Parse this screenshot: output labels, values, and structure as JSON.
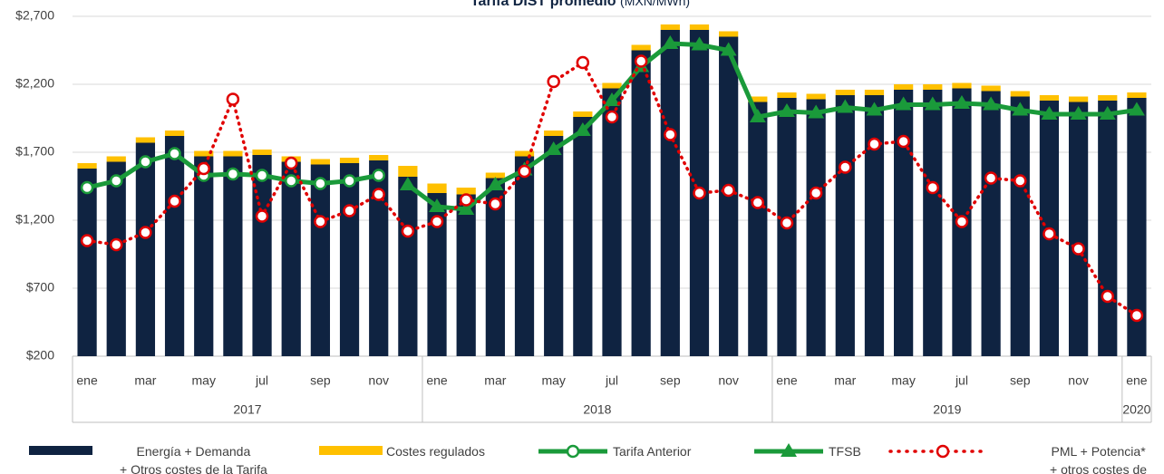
{
  "chart_data": {
    "type": "combo",
    "title": "Tarifa DIST promedio",
    "subtitle": "(MXN/MWh)",
    "categories": [
      "ene",
      null,
      "mar",
      null,
      "may",
      null,
      "jul",
      null,
      "sep",
      null,
      "nov",
      null,
      "ene",
      null,
      "mar",
      null,
      "may",
      null,
      "jul",
      null,
      "sep",
      null,
      "nov",
      null,
      "ene",
      null,
      "mar",
      null,
      "may",
      null,
      "jul",
      null,
      "sep",
      null,
      "nov",
      null,
      "ene"
    ],
    "years": [
      "2017",
      "2018",
      "2019",
      "2020"
    ],
    "ylim": [
      200,
      2700
    ],
    "yticks": [
      {
        "value": 200,
        "label": "$200"
      },
      {
        "value": 700,
        "label": "$700"
      },
      {
        "value": 1200,
        "label": "$1,200"
      },
      {
        "value": 1700,
        "label": "$1,700"
      },
      {
        "value": 2200,
        "label": "$2,200"
      },
      {
        "value": 2700,
        "label": "$2,700"
      }
    ],
    "grid": true,
    "series": [
      {
        "name": "Energía + Demanda\n+ Otros costes de la Tarifa",
        "kind": "bar",
        "color": "#0f2341",
        "values": [
          1380,
          1430,
          1570,
          1620,
          1470,
          1470,
          1480,
          1430,
          1410,
          1420,
          1440,
          1320,
          1200,
          1190,
          1310,
          1470,
          1620,
          1760,
          1970,
          2250,
          2400,
          2400,
          2350,
          1870,
          1900,
          1890,
          1920,
          1920,
          1960,
          1960,
          1970,
          1950,
          1910,
          1880,
          1870,
          1880,
          1900
        ]
      },
      {
        "name": "Costes regulados",
        "kind": "bar",
        "color": "#ffc000",
        "values": [
          40,
          40,
          40,
          40,
          40,
          40,
          40,
          40,
          40,
          40,
          40,
          80,
          70,
          50,
          40,
          40,
          40,
          40,
          40,
          40,
          40,
          40,
          40,
          40,
          40,
          40,
          40,
          40,
          40,
          40,
          40,
          40,
          40,
          40,
          40,
          40,
          40
        ]
      },
      {
        "name": "Tarifa Anterior",
        "kind": "line",
        "marker": "circle",
        "color": "#1a9a3a",
        "values": [
          1440,
          1490,
          1630,
          1690,
          1530,
          1540,
          1530,
          1490,
          1470,
          1490,
          1530,
          null,
          null,
          null,
          null,
          null,
          null,
          null,
          null,
          null,
          null,
          null,
          null,
          null,
          null,
          null,
          null,
          null,
          null,
          null,
          null,
          null,
          null,
          null,
          null,
          null,
          null
        ]
      },
      {
        "name": "TFSB",
        "kind": "line",
        "marker": "triangle",
        "color": "#1a9a3a",
        "values": [
          null,
          null,
          null,
          null,
          null,
          null,
          null,
          null,
          null,
          null,
          null,
          1460,
          1300,
          1280,
          1460,
          1570,
          1720,
          1860,
          2080,
          2330,
          2500,
          2490,
          2450,
          1960,
          2000,
          1990,
          2030,
          2010,
          2050,
          2050,
          2060,
          2050,
          2010,
          1980,
          1980,
          1980,
          2010
        ]
      },
      {
        "name": "PML + Potencia*\n+ otros costes de mercado",
        "kind": "dotted",
        "marker": "circle",
        "color": "#e00000",
        "values": [
          1050,
          1020,
          1110,
          1340,
          1580,
          2090,
          1230,
          1620,
          1190,
          1270,
          1390,
          1120,
          1190,
          1350,
          1320,
          1560,
          2220,
          2360,
          1960,
          2370,
          1830,
          1400,
          1420,
          1330,
          1180,
          1400,
          1590,
          1760,
          1780,
          1440,
          1190,
          1510,
          1490,
          1100,
          990,
          640,
          500
        ]
      }
    ]
  }
}
